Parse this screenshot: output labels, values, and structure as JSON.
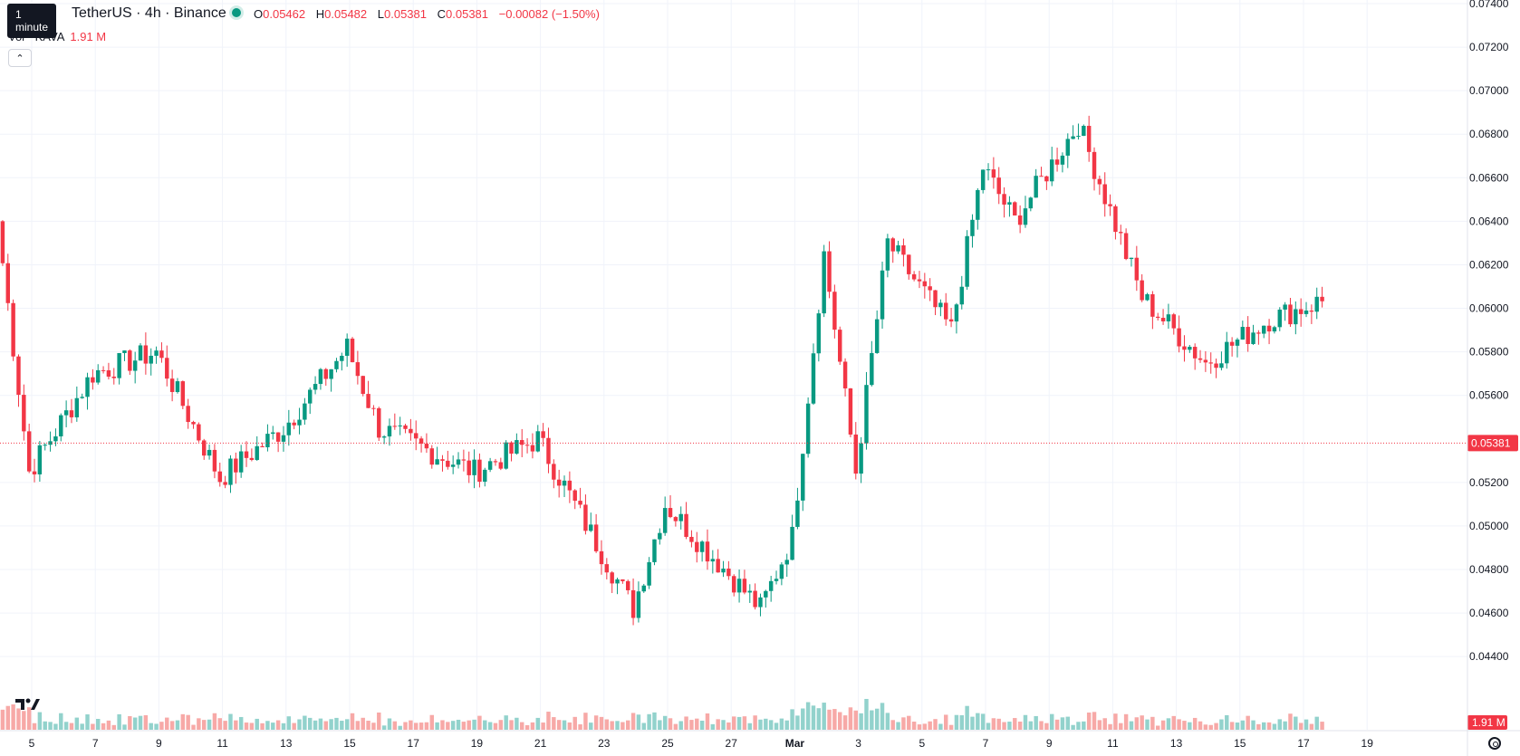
{
  "tooltip": "1 minute",
  "header": {
    "symbol": "TetherUS · 4h · Binance",
    "o_label": "O",
    "o_value": "0.05462",
    "h_label": "H",
    "h_value": "0.05482",
    "l_label": "L",
    "l_value": "0.05381",
    "c_label": "C",
    "c_value": "0.05381",
    "change": "−0.00082 (−1.50%)"
  },
  "volume_legend": {
    "label": "Vol · KAVA",
    "value": "1.91 M"
  },
  "collapse_icon": "chevron-up-icon",
  "logo": "tradingview-logo",
  "settings_icon": "gear-icon",
  "colors": {
    "up": "#089981",
    "down": "#f23645",
    "up_vol": "#92d2cc",
    "down_vol": "#f7a9a7",
    "grid": "#f0f3fa"
  },
  "price_axis": {
    "labels": [
      "0.07400",
      "0.07200",
      "0.07000",
      "0.06800",
      "0.06600",
      "0.06400",
      "0.06200",
      "0.06000",
      "0.05800",
      "0.05600",
      "0.05200",
      "0.05000",
      "0.04800",
      "0.04600",
      "0.04400"
    ],
    "last_price": "0.05381",
    "volume_badge": "1.91 M"
  },
  "time_axis": {
    "labels": [
      "5",
      "7",
      "9",
      "11",
      "13",
      "15",
      "17",
      "19",
      "21",
      "23",
      "25",
      "27",
      "Mar",
      "3",
      "5",
      "7",
      "9",
      "11",
      "13",
      "15",
      "17",
      "19"
    ]
  },
  "chart_data": {
    "type": "candlestick",
    "ylim": [
      0.044,
      0.074
    ],
    "last": 0.05381,
    "key_closes": [
      {
        "x": "5",
        "close": 0.064
      },
      {
        "x": "6",
        "close": 0.0525
      },
      {
        "x": "7",
        "close": 0.057
      },
      {
        "x": "9",
        "close": 0.058
      },
      {
        "x": "11",
        "close": 0.0522
      },
      {
        "x": "13",
        "close": 0.0545
      },
      {
        "x": "15",
        "close": 0.0582
      },
      {
        "x": "16",
        "close": 0.0545
      },
      {
        "x": "19",
        "close": 0.0525
      },
      {
        "x": "21",
        "close": 0.054
      },
      {
        "x": "24",
        "close": 0.0462
      },
      {
        "x": "25",
        "close": 0.051
      },
      {
        "x": "28",
        "close": 0.0462
      },
      {
        "x": "Mar",
        "close": 0.0495
      },
      {
        "x": "2",
        "close": 0.0625
      },
      {
        "x": "3",
        "close": 0.0525
      },
      {
        "x": "4",
        "close": 0.063
      },
      {
        "x": "6",
        "close": 0.059
      },
      {
        "x": "7",
        "close": 0.0665
      },
      {
        "x": "8",
        "close": 0.064
      },
      {
        "x": "10",
        "close": 0.0685
      },
      {
        "x": "12",
        "close": 0.0605
      },
      {
        "x": "14",
        "close": 0.0575
      },
      {
        "x": "16",
        "close": 0.0595
      },
      {
        "x": "18",
        "close": 0.0605
      },
      {
        "x": "19",
        "close": 0.0538
      }
    ]
  }
}
